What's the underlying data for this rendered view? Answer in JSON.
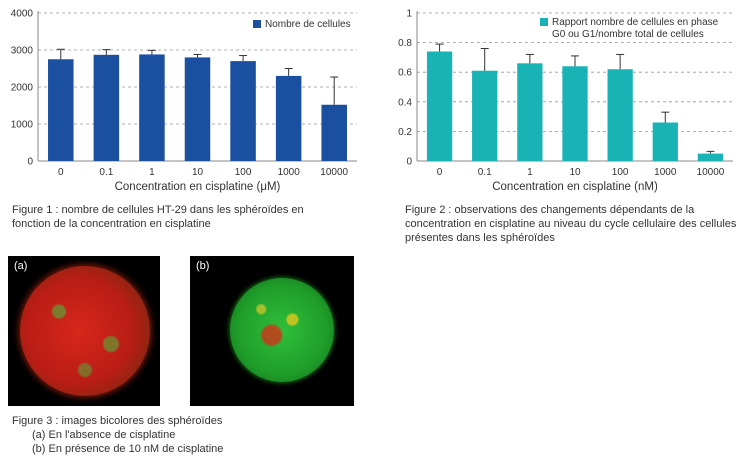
{
  "chart_data": [
    {
      "type": "bar",
      "categories": [
        "0",
        "0.1",
        "1",
        "10",
        "100",
        "1000",
        "10000"
      ],
      "series": [
        {
          "name": "Nombre de cellules",
          "values": [
            2750,
            2870,
            2880,
            2800,
            2700,
            2300,
            1520
          ],
          "errors": [
            270,
            140,
            110,
            80,
            150,
            200,
            750
          ]
        }
      ],
      "xlabel": "Concentration en cisplatine (μM)",
      "ylabel": "",
      "ylim": [
        0,
        4000
      ],
      "yticks": [
        "0",
        "1000",
        "2000",
        "3000",
        "4000"
      ],
      "grid": true,
      "legend_position": "top-right",
      "color": "#1b4fa0"
    },
    {
      "type": "bar",
      "categories": [
        "0",
        "0.1",
        "1",
        "10",
        "100",
        "1000",
        "10000"
      ],
      "series": [
        {
          "name": "Rapport nombre de cellules en phase G0 ou G1/nombre total de cellules",
          "values": [
            0.74,
            0.61,
            0.66,
            0.64,
            0.62,
            0.26,
            0.05
          ],
          "errors": [
            0.05,
            0.15,
            0.06,
            0.07,
            0.1,
            0.07,
            0.015
          ]
        }
      ],
      "xlabel": "Concentration en cisplatine (nM)",
      "ylabel": "",
      "ylim": [
        0,
        1
      ],
      "yticks": [
        "0",
        "0.2",
        "0.4",
        "0.6",
        "0.8",
        "1"
      ],
      "grid": true,
      "legend_position": "top-right",
      "legend_lines": [
        "Rapport nombre de cellules en phase",
        "G0 ou G1/nombre total de cellules"
      ],
      "color": "#19b3b5"
    }
  ],
  "captions": {
    "fig1": "Figure 1 : nombre de cellules HT-29 dans les sphéroïdes en fonction de la concentration en cisplatine",
    "fig2": "Figure 2  : observations des changements dépendants de la concentration en cisplatine au niveau du cycle cellulaire des cellules présentes dans les sphéroïdes",
    "fig3": "Figure 3 : images bicolores des sphéroïdes",
    "fig3a": "(a) En l'absence de cisplatine",
    "fig3b": "(b) En présence de 10 nM de cisplatine"
  },
  "photos": {
    "a_label": "(a)",
    "b_label": "(b)"
  }
}
